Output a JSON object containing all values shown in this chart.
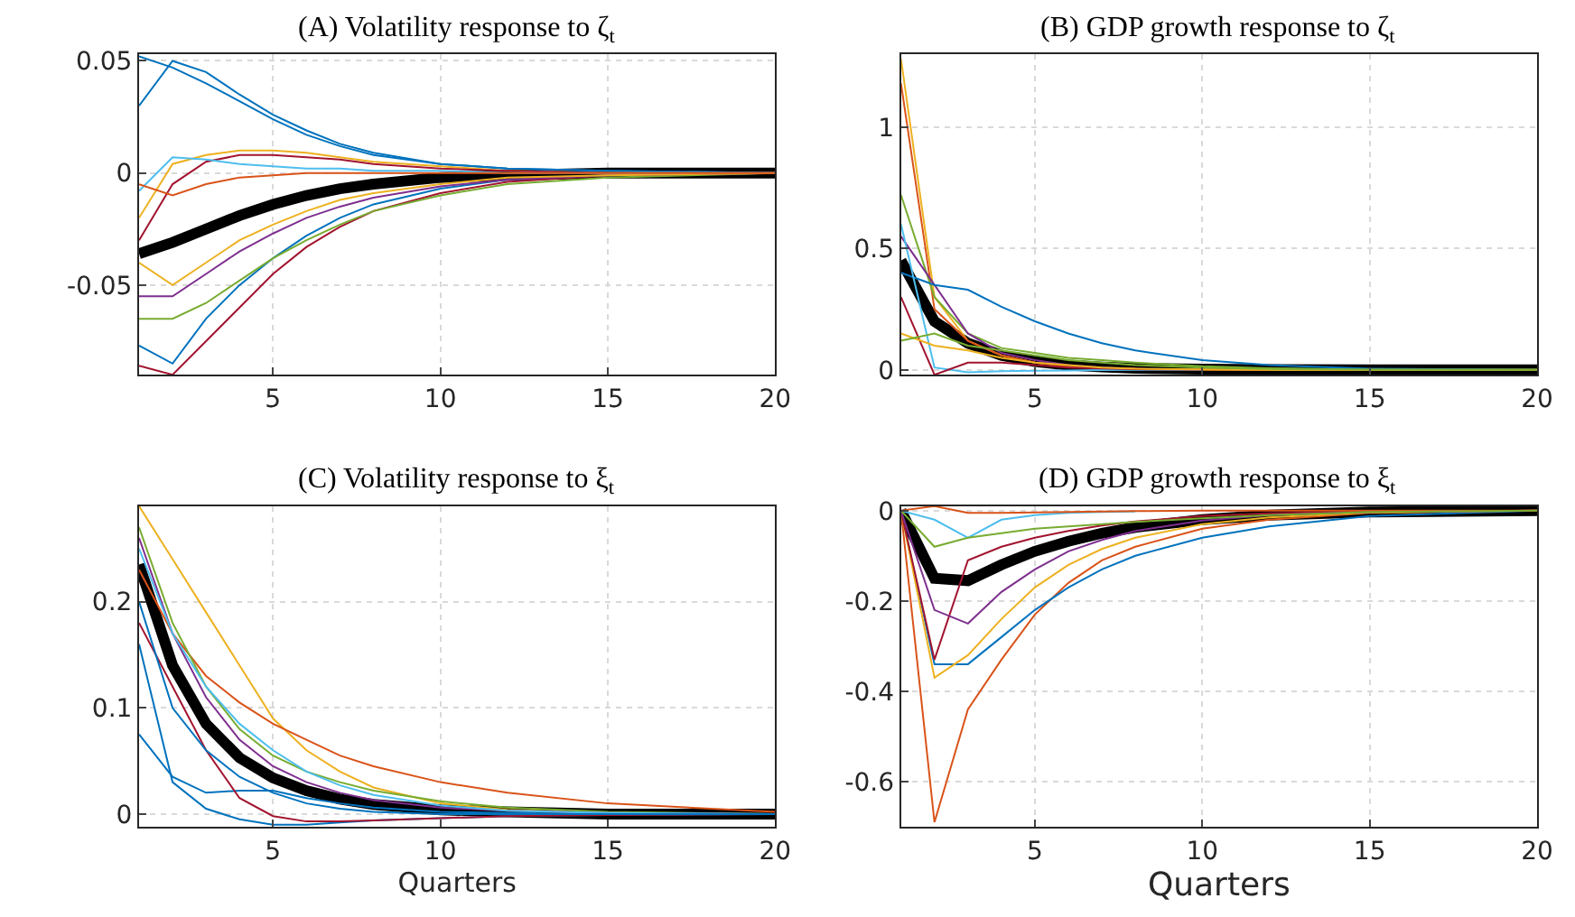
{
  "chart_data": [
    {
      "type": "line",
      "title": "(A) Volatility response to ζ$_{t}$",
      "xlim": [
        1,
        20
      ],
      "xticks": [
        5,
        10,
        15,
        20
      ],
      "ylim": [
        -0.09,
        0.053
      ],
      "yticks": [
        -0.05,
        0,
        0.05
      ],
      "grid": true,
      "marker": "none",
      "line_style": "solid",
      "x": [
        1,
        2,
        3,
        4,
        5,
        6,
        7,
        8,
        10,
        12,
        15,
        20
      ],
      "series": [
        {
          "color": "#0072bd",
          "values": [
            0.052,
            0.047,
            0.04,
            0.032,
            0.024,
            0.017,
            0.012,
            0.008,
            0.004,
            0.002,
            0.001,
            0
          ]
        },
        {
          "color": "#0072bd",
          "values": [
            0.03,
            0.05,
            0.045,
            0.035,
            0.026,
            0.019,
            0.013,
            0.009,
            0.004,
            0.002,
            0.001,
            0
          ]
        },
        {
          "color": "#0072bd",
          "values": [
            -0.077,
            -0.085,
            -0.065,
            -0.05,
            -0.038,
            -0.028,
            -0.02,
            -0.014,
            -0.007,
            -0.003,
            -0.001,
            0
          ]
        },
        {
          "color": "#a2142f",
          "values": [
            -0.086,
            -0.09,
            -0.075,
            -0.06,
            -0.045,
            -0.033,
            -0.024,
            -0.017,
            -0.009,
            -0.004,
            -0.001,
            0
          ]
        },
        {
          "color": "#77ac30",
          "values": [
            -0.065,
            -0.065,
            -0.058,
            -0.048,
            -0.038,
            -0.03,
            -0.023,
            -0.017,
            -0.01,
            -0.005,
            -0.002,
            0
          ]
        },
        {
          "color": "#edb120",
          "values": [
            -0.02,
            0.004,
            0.008,
            0.01,
            0.01,
            0.009,
            0.007,
            0.005,
            0.003,
            0.001,
            0,
            0
          ]
        },
        {
          "color": "#a2142f",
          "values": [
            -0.03,
            -0.005,
            0.005,
            0.008,
            0.008,
            0.007,
            0.006,
            0.004,
            0.002,
            0.001,
            0,
            0
          ]
        },
        {
          "color": "#7e2f8e",
          "values": [
            -0.055,
            -0.055,
            -0.045,
            -0.035,
            -0.027,
            -0.02,
            -0.015,
            -0.011,
            -0.006,
            -0.003,
            -0.001,
            0
          ]
        },
        {
          "color": "#4dbeee",
          "values": [
            -0.008,
            0.007,
            0.006,
            0.004,
            0.003,
            0.002,
            0.002,
            0.001,
            0.001,
            0,
            0,
            0
          ]
        },
        {
          "color": "#edb120",
          "values": [
            -0.04,
            -0.05,
            -0.04,
            -0.03,
            -0.023,
            -0.017,
            -0.012,
            -0.009,
            -0.005,
            -0.002,
            -0.001,
            0
          ]
        },
        {
          "color": "#d95319",
          "values": [
            -0.005,
            -0.01,
            -0.005,
            -0.002,
            -0.001,
            0,
            0,
            0,
            0,
            0,
            0,
            0
          ]
        },
        {
          "color": "#000000",
          "values": [
            -0.036,
            -0.031,
            -0.025,
            -0.019,
            -0.014,
            -0.01,
            -0.007,
            -0.005,
            -0.002,
            -0.001,
            0,
            0
          ]
        }
      ]
    },
    {
      "type": "line",
      "title": "(B) GDP growth response to ζ$_{t}$",
      "xlim": [
        1,
        20
      ],
      "xticks": [
        5,
        10,
        15,
        20
      ],
      "ylim": [
        -0.02,
        1.3
      ],
      "yticks": [
        0,
        0.5,
        1
      ],
      "grid": true,
      "marker": "none",
      "line_style": "solid",
      "x": [
        1,
        2,
        3,
        4,
        5,
        6,
        7,
        8,
        10,
        12,
        15,
        20
      ],
      "series": [
        {
          "color": "#edb120",
          "values": [
            1.28,
            0.3,
            0.12,
            0.06,
            0.03,
            0.015,
            0.008,
            0.004,
            0.001,
            0,
            0,
            0
          ]
        },
        {
          "color": "#d95319",
          "values": [
            1.18,
            0.25,
            0.12,
            0.06,
            0.03,
            0.015,
            0.008,
            0.004,
            0.001,
            0,
            null,
            null
          ]
        },
        {
          "color": "#77ac30",
          "values": [
            0.72,
            0.3,
            0.15,
            0.09,
            0.07,
            0.05,
            0.04,
            0.03,
            0.015,
            0.007,
            0.002,
            0
          ]
        },
        {
          "color": "#7e2f8e",
          "values": [
            0.55,
            0.35,
            0.15,
            0.07,
            0.04,
            0.02,
            0.01,
            0.005,
            0.002,
            null,
            null,
            null
          ]
        },
        {
          "color": "#0072bd",
          "values": [
            0.4,
            0.35,
            0.33,
            0.26,
            0.2,
            0.15,
            0.11,
            0.08,
            0.04,
            0.02,
            0.005,
            0
          ]
        },
        {
          "color": "#4dbeee",
          "values": [
            0.6,
            0.01,
            -0.01,
            -0.005,
            -0.003,
            -0.002,
            -0.001,
            0,
            0,
            null,
            null,
            null
          ]
        },
        {
          "color": "#a2142f",
          "values": [
            0.3,
            -0.02,
            0.03,
            0.03,
            0.02,
            0.01,
            0.006,
            0.003,
            0.001,
            null,
            null,
            null
          ]
        },
        {
          "color": "#edb120",
          "values": [
            0.15,
            0.1,
            0.08,
            0.05,
            0.03,
            0.02,
            0.01,
            0.005,
            0.002,
            0,
            0,
            0
          ]
        },
        {
          "color": "#77ac30",
          "values": [
            0.12,
            0.15,
            0.1,
            0.08,
            0.06,
            0.04,
            0.03,
            0.02,
            0.01,
            0.004,
            0.001,
            0
          ]
        },
        {
          "color": "#000000",
          "values": [
            0.45,
            0.2,
            0.11,
            0.06,
            0.035,
            0.02,
            0.012,
            0.007,
            0.003,
            0.001,
            0,
            0
          ]
        }
      ]
    },
    {
      "type": "line",
      "title": "(C) Volatility response to ξ$_{t}$",
      "xlabel": "Quarters",
      "xlim": [
        1,
        20
      ],
      "xticks": [
        5,
        10,
        15,
        20
      ],
      "ylim": [
        -0.012,
        0.29
      ],
      "yticks": [
        0,
        0.1,
        0.2
      ],
      "grid": true,
      "marker": "none",
      "line_style": "solid",
      "x": [
        1,
        2,
        3,
        4,
        5,
        6,
        7,
        8,
        10,
        12,
        15,
        20
      ],
      "series": [
        {
          "color": "#edb120",
          "values": [
            0.29,
            0.24,
            0.19,
            0.14,
            0.09,
            0.06,
            0.04,
            0.025,
            0.01,
            0.004,
            0.001,
            0
          ]
        },
        {
          "color": "#d95319",
          "values": [
            0.23,
            0.17,
            0.13,
            0.105,
            0.085,
            0.07,
            0.055,
            0.045,
            0.03,
            0.02,
            0.01,
            0.002
          ]
        },
        {
          "color": "#0072bd",
          "values": [
            0.075,
            0.035,
            0.02,
            0.022,
            0.022,
            0.015,
            0.01,
            0.006,
            0.002,
            0.001,
            0,
            0
          ]
        },
        {
          "color": "#0072bd",
          "values": [
            0.16,
            0.03,
            0.005,
            -0.005,
            -0.01,
            -0.01,
            -0.008,
            -0.006,
            -0.004,
            -0.002,
            -0.001,
            0
          ]
        },
        {
          "color": "#a2142f",
          "values": [
            0.18,
            0.12,
            0.06,
            0.015,
            -0.002,
            -0.007,
            -0.007,
            -0.006,
            -0.004,
            -0.002,
            -0.001,
            0
          ]
        },
        {
          "color": "#77ac30",
          "values": [
            0.27,
            0.18,
            0.12,
            0.08,
            0.055,
            0.04,
            0.03,
            0.022,
            0.012,
            0.006,
            0.002,
            0
          ]
        },
        {
          "color": "#7e2f8e",
          "values": [
            0.26,
            0.17,
            0.11,
            0.07,
            0.045,
            0.03,
            0.02,
            0.013,
            0.006,
            0.003,
            0.001,
            0
          ]
        },
        {
          "color": "#4dbeee",
          "values": [
            0.25,
            0.17,
            0.12,
            0.085,
            0.06,
            0.04,
            0.027,
            0.018,
            0.008,
            0.003,
            0.001,
            0
          ]
        },
        {
          "color": "#0072bd",
          "values": [
            0.2,
            0.1,
            0.06,
            0.035,
            0.02,
            0.01,
            0.005,
            0.002,
            0,
            0,
            0,
            0
          ]
        },
        {
          "color": "#000000",
          "values": [
            0.235,
            0.14,
            0.085,
            0.053,
            0.034,
            0.022,
            0.014,
            0.009,
            0.004,
            0.002,
            0,
            0
          ]
        }
      ]
    },
    {
      "type": "line",
      "title": "(D) GDP growth response to ξ$_{t}$",
      "xlabel": "Quarters",
      "xlim": [
        1,
        20
      ],
      "xticks": [
        5,
        10,
        15,
        20
      ],
      "ylim": [
        -0.7,
        0.01
      ],
      "yticks": [
        -0.6,
        -0.4,
        -0.2,
        0
      ],
      "grid": true,
      "marker": "none",
      "line_style": "solid",
      "x": [
        1,
        2,
        3,
        4,
        5,
        6,
        7,
        8,
        10,
        12,
        15,
        20
      ],
      "series": [
        {
          "color": "#d95319",
          "values": [
            0,
            -0.69,
            -0.44,
            -0.33,
            -0.23,
            -0.16,
            -0.11,
            -0.08,
            -0.04,
            -0.02,
            -0.005,
            0
          ]
        },
        {
          "color": "#0072bd",
          "values": [
            0,
            -0.34,
            -0.34,
            -0.28,
            -0.22,
            -0.17,
            -0.13,
            -0.1,
            -0.06,
            -0.035,
            -0.012,
            0
          ]
        },
        {
          "color": "#edb120",
          "values": [
            0,
            -0.37,
            -0.32,
            -0.24,
            -0.17,
            -0.12,
            -0.085,
            -0.06,
            -0.03,
            -0.015,
            -0.004,
            0
          ]
        },
        {
          "color": "#a2142f",
          "values": [
            0,
            -0.33,
            -0.11,
            -0.08,
            -0.06,
            -0.045,
            -0.033,
            -0.024,
            -0.012,
            -0.006,
            -0.002,
            0
          ]
        },
        {
          "color": "#7e2f8e",
          "values": [
            0,
            -0.22,
            -0.25,
            -0.18,
            -0.13,
            -0.09,
            -0.065,
            -0.045,
            -0.022,
            -0.01,
            -0.003,
            0
          ]
        },
        {
          "color": "#4dbeee",
          "values": [
            0,
            -0.02,
            -0.06,
            -0.02,
            -0.01,
            -0.005,
            -0.003,
            -0.002,
            null,
            null,
            null,
            null
          ]
        },
        {
          "color": "#d95319",
          "values": [
            0,
            0.01,
            -0.005,
            -0.005,
            -0.004,
            -0.003,
            -0.002,
            -0.001,
            0,
            0,
            0,
            0
          ]
        },
        {
          "color": "#77ac30",
          "values": [
            0,
            -0.08,
            -0.06,
            -0.05,
            -0.04,
            -0.035,
            -0.03,
            -0.025,
            -0.017,
            -0.01,
            -0.003,
            0
          ]
        },
        {
          "color": "#000000",
          "values": [
            0,
            -0.15,
            -0.155,
            -0.12,
            -0.09,
            -0.068,
            -0.05,
            -0.037,
            -0.02,
            -0.01,
            -0.003,
            0
          ]
        }
      ]
    }
  ]
}
